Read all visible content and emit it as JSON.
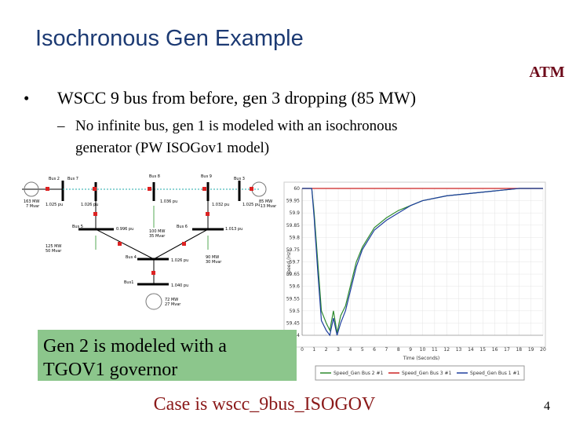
{
  "slide": {
    "title": "Isochronous Gen Example",
    "logo": "ATM",
    "bullets": [
      "WSCC 9 bus from before, gen 3 dropping (85 MW)",
      "No infinite bus, gen 1 is modeled with an isochronous",
      "generator (PW ISOGov1 model)"
    ],
    "callout": [
      "Gen 2 is modeled with a",
      "TGOV1 governor"
    ],
    "footer": "Case is wscc_9bus_ISOGOV",
    "page": "4"
  },
  "diagram": {
    "labels": [
      "Bus 2",
      "Bus 7",
      "Bus 8",
      "Bus 9",
      "Bus 3",
      "163 MW",
      "7 Mvar",
      "1.025 pu",
      "1.026 pu",
      "1.036 pu",
      "1.032 pu",
      "1.025 pu",
      "85 MW",
      "-13 Mvar",
      "Bus 5",
      "0.996 pu",
      "Bus 6",
      "1.013 pu",
      "125 MW",
      "50 Mvar",
      "100 MW",
      "35 Mvar",
      "Bus 4",
      "1.026 pu",
      "90 MW",
      "30 Mvar",
      "Bus1",
      "1.040 pu",
      "72 MW",
      "27 Mvar"
    ]
  },
  "chart_data": {
    "type": "line",
    "ylabel": "Speed (Hz)",
    "xlabel": "Time (Seconds)",
    "x": [
      0,
      0.8,
      1.0,
      1.3,
      1.6,
      2.0,
      2.3,
      2.6,
      2.9,
      3.2,
      3.6,
      4.0,
      4.5,
      5.0,
      5.5,
      6,
      7,
      8,
      9,
      10,
      12,
      14,
      16,
      18,
      20
    ],
    "series": [
      {
        "name": "Speed_Gen Bus 2 #1",
        "color": "#2e8b2e",
        "values": [
          60,
          60,
          59.9,
          59.7,
          59.5,
          59.45,
          59.42,
          59.5,
          59.41,
          59.48,
          59.52,
          59.6,
          59.7,
          59.76,
          59.8,
          59.84,
          59.88,
          59.91,
          59.93,
          59.95,
          59.97,
          59.98,
          59.99,
          60,
          60
        ]
      },
      {
        "name": "Speed_Gen Bus 3 #1",
        "color": "#cc2222",
        "values": [
          60,
          60,
          60,
          60,
          60,
          60,
          60,
          60,
          60,
          60,
          60,
          60,
          60,
          60,
          60,
          60,
          60,
          60,
          60,
          60,
          60,
          60,
          60,
          60,
          60
        ]
      },
      {
        "name": "Speed_Gen Bus 1 #1",
        "color": "#1f3f9f",
        "values": [
          60,
          60,
          59.88,
          59.66,
          59.46,
          59.42,
          59.4,
          59.47,
          59.4,
          59.45,
          59.5,
          59.58,
          59.68,
          59.75,
          59.79,
          59.83,
          59.87,
          59.9,
          59.93,
          59.95,
          59.97,
          59.98,
          59.99,
          60,
          60
        ]
      }
    ],
    "xlim": [
      0,
      20
    ],
    "xticks": [
      0,
      1,
      2,
      3,
      4,
      5,
      6,
      7,
      8,
      9,
      10,
      11,
      12,
      13,
      14,
      15,
      16,
      17,
      18,
      19,
      20
    ],
    "ylim": [
      59.4,
      60
    ],
    "yticks": [
      60,
      59.95,
      59.9,
      59.85,
      59.8,
      59.75,
      59.7,
      59.65,
      59.6,
      59.55,
      59.5,
      59.45,
      59.4
    ],
    "grid": true
  }
}
